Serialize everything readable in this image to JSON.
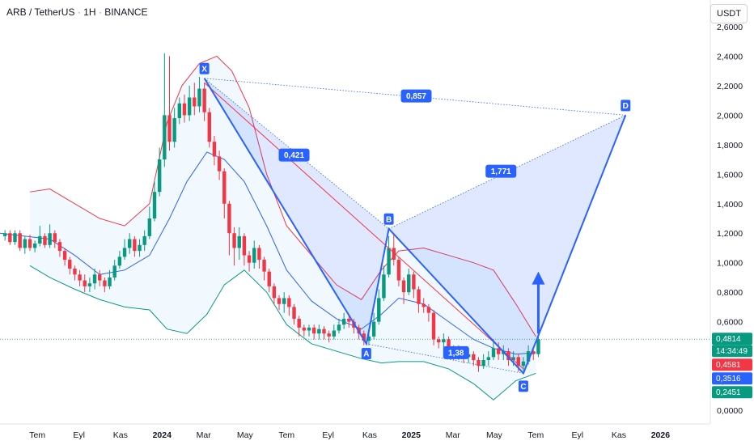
{
  "header": {
    "symbol": "ARB / TetherUS",
    "interval": "1H",
    "exchange": "BINANCE",
    "currency": "USDT"
  },
  "chart_data": {
    "type": "candlestick",
    "y_axis": {
      "range": [
        -0.1,
        2.65
      ],
      "ticks": [
        0.0,
        0.2,
        0.4,
        0.6,
        0.8,
        1.0,
        1.2,
        1.4,
        1.6,
        1.8,
        2.0,
        2.2,
        2.4,
        2.6
      ],
      "tick_labels": [
        "0,0000",
        "0,2000",
        "0,4000",
        "0,6000",
        "0,8000",
        "1,0000",
        "1,2000",
        "1,4000",
        "1,6000",
        "1,8000",
        "2,0000",
        "2,2000",
        "2,4000",
        "2,6000"
      ]
    },
    "x_axis": {
      "range": [
        2023.35,
        2026.2
      ],
      "ticks": [
        2023.5,
        2023.667,
        2023.833,
        2024.0,
        2024.167,
        2024.333,
        2024.5,
        2024.667,
        2024.833,
        2025.0,
        2025.167,
        2025.333,
        2025.5,
        2025.667,
        2025.833,
        2026.0
      ],
      "tick_labels": [
        "Tem",
        "Eyl",
        "Kas",
        "2024",
        "Mar",
        "May",
        "Tem",
        "Eyl",
        "Kas",
        "2025",
        "Mar",
        "May",
        "Tem",
        "Eyl",
        "Kas",
        "2026"
      ]
    },
    "candles": [
      [
        2023.37,
        1.18,
        1.2,
        1.22,
        1.15
      ],
      [
        2023.39,
        1.2,
        1.14,
        1.22,
        1.12
      ],
      [
        2023.41,
        1.14,
        1.2,
        1.22,
        1.12
      ],
      [
        2023.43,
        1.2,
        1.1,
        1.22,
        1.08
      ],
      [
        2023.45,
        1.1,
        1.16,
        1.18,
        1.06
      ],
      [
        2023.47,
        1.16,
        1.1,
        1.19,
        1.08
      ],
      [
        2023.49,
        1.1,
        1.13,
        1.15,
        1.07
      ],
      [
        2023.51,
        1.13,
        1.18,
        1.25,
        1.11
      ],
      [
        2023.53,
        1.18,
        1.12,
        1.2,
        1.1
      ],
      [
        2023.55,
        1.12,
        1.2,
        1.26,
        1.1
      ],
      [
        2023.57,
        1.2,
        1.14,
        1.22,
        1.1
      ],
      [
        2023.59,
        1.14,
        1.08,
        1.16,
        1.04
      ],
      [
        2023.61,
        1.08,
        1.02,
        1.1,
        0.98
      ],
      [
        2023.63,
        1.02,
        0.96,
        1.04,
        0.92
      ],
      [
        2023.65,
        0.96,
        0.92,
        0.98,
        0.88
      ],
      [
        2023.67,
        0.92,
        0.88,
        0.95,
        0.84
      ],
      [
        2023.69,
        0.88,
        0.84,
        0.92,
        0.8
      ],
      [
        2023.71,
        0.84,
        0.86,
        0.9,
        0.8
      ],
      [
        2023.73,
        0.86,
        0.92,
        0.96,
        0.82
      ],
      [
        2023.75,
        0.92,
        0.88,
        0.95,
        0.84
      ],
      [
        2023.77,
        0.88,
        0.84,
        0.9,
        0.8
      ],
      [
        2023.79,
        0.84,
        0.9,
        0.95,
        0.82
      ],
      [
        2023.81,
        0.9,
        0.98,
        1.02,
        0.88
      ],
      [
        2023.83,
        0.98,
        1.04,
        1.08,
        0.96
      ],
      [
        2023.85,
        1.04,
        1.1,
        1.16,
        1.02
      ],
      [
        2023.87,
        1.1,
        1.16,
        1.2,
        1.06
      ],
      [
        2023.89,
        1.16,
        1.08,
        1.18,
        1.04
      ],
      [
        2023.91,
        1.08,
        1.12,
        1.16,
        1.04
      ],
      [
        2023.93,
        1.12,
        1.18,
        1.22,
        1.08
      ],
      [
        2023.95,
        1.18,
        1.3,
        1.38,
        1.16
      ],
      [
        2023.97,
        1.3,
        1.48,
        1.55,
        1.28
      ],
      [
        2023.99,
        1.48,
        1.7,
        1.78,
        1.45
      ],
      [
        2024.01,
        1.7,
        2.0,
        2.42,
        1.65
      ],
      [
        2024.03,
        2.0,
        1.82,
        2.4,
        1.76
      ],
      [
        2024.05,
        1.82,
        1.98,
        2.05,
        1.78
      ],
      [
        2024.07,
        1.98,
        2.08,
        2.12,
        1.94
      ],
      [
        2024.09,
        2.08,
        2.0,
        2.14,
        1.95
      ],
      [
        2024.11,
        2.0,
        2.12,
        2.2,
        1.96
      ],
      [
        2024.13,
        2.12,
        2.06,
        2.22,
        2.0
      ],
      [
        2024.15,
        2.06,
        2.18,
        2.26,
        2.02
      ],
      [
        2024.17,
        2.18,
        2.02,
        2.22,
        1.96
      ],
      [
        2024.19,
        2.02,
        1.82,
        2.05,
        1.78
      ],
      [
        2024.21,
        1.82,
        1.72,
        1.86,
        1.66
      ],
      [
        2024.23,
        1.72,
        1.62,
        1.76,
        1.56
      ],
      [
        2024.25,
        1.62,
        1.4,
        1.64,
        1.3
      ],
      [
        2024.27,
        1.4,
        1.2,
        1.42,
        1.05
      ],
      [
        2024.29,
        1.2,
        1.1,
        1.24,
        0.98
      ],
      [
        2024.31,
        1.1,
        1.18,
        1.24,
        1.02
      ],
      [
        2024.33,
        1.18,
        1.05,
        1.2,
        0.98
      ],
      [
        2024.35,
        1.05,
        1.0,
        1.08,
        0.94
      ],
      [
        2024.37,
        1.0,
        1.1,
        1.15,
        0.96
      ],
      [
        2024.39,
        1.1,
        1.02,
        1.12,
        0.96
      ],
      [
        2024.41,
        1.02,
        0.94,
        1.04,
        0.88
      ],
      [
        2024.43,
        0.94,
        0.84,
        0.96,
        0.8
      ],
      [
        2024.45,
        0.84,
        0.76,
        0.86,
        0.72
      ],
      [
        2024.47,
        0.76,
        0.72,
        0.78,
        0.68
      ],
      [
        2024.49,
        0.72,
        0.76,
        0.8,
        0.66
      ],
      [
        2024.51,
        0.76,
        0.7,
        0.78,
        0.64
      ],
      [
        2024.53,
        0.7,
        0.62,
        0.72,
        0.58
      ],
      [
        2024.55,
        0.62,
        0.56,
        0.64,
        0.5
      ],
      [
        2024.57,
        0.56,
        0.54,
        0.58,
        0.5
      ],
      [
        2024.59,
        0.54,
        0.56,
        0.58,
        0.5
      ],
      [
        2024.61,
        0.56,
        0.52,
        0.58,
        0.48
      ],
      [
        2024.63,
        0.52,
        0.55,
        0.58,
        0.48
      ],
      [
        2024.65,
        0.55,
        0.52,
        0.57,
        0.48
      ],
      [
        2024.67,
        0.52,
        0.5,
        0.54,
        0.46
      ],
      [
        2024.69,
        0.5,
        0.54,
        0.58,
        0.48
      ],
      [
        2024.71,
        0.54,
        0.58,
        0.62,
        0.52
      ],
      [
        2024.73,
        0.58,
        0.62,
        0.66,
        0.55
      ],
      [
        2024.75,
        0.62,
        0.6,
        0.64,
        0.56
      ],
      [
        2024.77,
        0.6,
        0.56,
        0.62,
        0.52
      ],
      [
        2024.79,
        0.56,
        0.52,
        0.58,
        0.48
      ],
      [
        2024.81,
        0.52,
        0.47,
        0.54,
        0.44
      ],
      [
        2024.83,
        0.47,
        0.5,
        0.55,
        0.44
      ],
      [
        2024.85,
        0.5,
        0.6,
        0.66,
        0.48
      ],
      [
        2024.87,
        0.6,
        0.76,
        0.82,
        0.58
      ],
      [
        2024.89,
        0.76,
        0.92,
        0.98,
        0.74
      ],
      [
        2024.91,
        0.92,
        1.1,
        1.18,
        0.9
      ],
      [
        2024.93,
        1.1,
        1.02,
        1.2,
        0.98
      ],
      [
        2024.95,
        1.02,
        0.88,
        1.04,
        0.84
      ],
      [
        2024.97,
        0.88,
        0.8,
        0.9,
        0.72
      ],
      [
        2024.99,
        0.8,
        0.92,
        0.96,
        0.78
      ],
      [
        2025.01,
        0.92,
        0.82,
        0.94,
        0.76
      ],
      [
        2025.03,
        0.82,
        0.72,
        0.84,
        0.66
      ],
      [
        2025.05,
        0.72,
        0.7,
        0.76,
        0.66
      ],
      [
        2025.07,
        0.7,
        0.66,
        0.72,
        0.6
      ],
      [
        2025.09,
        0.66,
        0.48,
        0.68,
        0.44
      ],
      [
        2025.11,
        0.48,
        0.46,
        0.5,
        0.42
      ],
      [
        2025.13,
        0.46,
        0.48,
        0.52,
        0.42
      ],
      [
        2025.15,
        0.48,
        0.42,
        0.5,
        0.38
      ],
      [
        2025.17,
        0.42,
        0.38,
        0.44,
        0.34
      ],
      [
        2025.19,
        0.38,
        0.4,
        0.44,
        0.34
      ],
      [
        2025.21,
        0.4,
        0.36,
        0.42,
        0.32
      ],
      [
        2025.23,
        0.36,
        0.38,
        0.42,
        0.32
      ],
      [
        2025.25,
        0.38,
        0.34,
        0.4,
        0.3
      ],
      [
        2025.27,
        0.34,
        0.3,
        0.36,
        0.26
      ],
      [
        2025.29,
        0.3,
        0.34,
        0.38,
        0.28
      ],
      [
        2025.31,
        0.34,
        0.36,
        0.4,
        0.3
      ],
      [
        2025.33,
        0.36,
        0.42,
        0.48,
        0.34
      ],
      [
        2025.35,
        0.42,
        0.38,
        0.46,
        0.34
      ],
      [
        2025.37,
        0.38,
        0.4,
        0.44,
        0.34
      ],
      [
        2025.39,
        0.4,
        0.34,
        0.42,
        0.3
      ],
      [
        2025.41,
        0.34,
        0.36,
        0.4,
        0.3
      ],
      [
        2025.43,
        0.36,
        0.3,
        0.38,
        0.26
      ],
      [
        2025.45,
        0.3,
        0.33,
        0.36,
        0.27
      ],
      [
        2025.47,
        0.33,
        0.4,
        0.44,
        0.31
      ],
      [
        2025.49,
        0.4,
        0.38,
        0.42,
        0.34
      ],
      [
        2025.51,
        0.38,
        0.48,
        0.52,
        0.36
      ]
    ],
    "bollinger": {
      "upper": [
        [
          2023.47,
          1.48
        ],
        [
          2023.55,
          1.5
        ],
        [
          2023.65,
          1.4
        ],
        [
          2023.75,
          1.3
        ],
        [
          2023.85,
          1.25
        ],
        [
          2023.95,
          1.4
        ],
        [
          2024.02,
          1.95
        ],
        [
          2024.08,
          2.2
        ],
        [
          2024.15,
          2.35
        ],
        [
          2024.22,
          2.4
        ],
        [
          2024.28,
          2.3
        ],
        [
          2024.35,
          2.05
        ],
        [
          2024.42,
          1.6
        ],
        [
          2024.5,
          1.25
        ],
        [
          2024.6,
          1.05
        ],
        [
          2024.7,
          0.85
        ],
        [
          2024.8,
          0.75
        ],
        [
          2024.88,
          0.95
        ],
        [
          2024.95,
          1.08
        ],
        [
          2025.05,
          1.1
        ],
        [
          2025.15,
          1.05
        ],
        [
          2025.25,
          1.0
        ],
        [
          2025.33,
          0.95
        ],
        [
          2025.42,
          0.72
        ],
        [
          2025.5,
          0.5
        ]
      ],
      "middle": [
        [
          2023.35,
          1.2
        ],
        [
          2023.45,
          1.18
        ],
        [
          2023.55,
          1.16
        ],
        [
          2023.65,
          1.05
        ],
        [
          2023.75,
          0.92
        ],
        [
          2023.85,
          0.95
        ],
        [
          2023.95,
          1.05
        ],
        [
          2024.03,
          1.3
        ],
        [
          2024.1,
          1.55
        ],
        [
          2024.18,
          1.75
        ],
        [
          2024.25,
          1.7
        ],
        [
          2024.33,
          1.55
        ],
        [
          2024.42,
          1.25
        ],
        [
          2024.5,
          0.95
        ],
        [
          2024.6,
          0.74
        ],
        [
          2024.7,
          0.62
        ],
        [
          2024.8,
          0.55
        ],
        [
          2024.88,
          0.65
        ],
        [
          2024.95,
          0.76
        ],
        [
          2025.05,
          0.72
        ],
        [
          2025.15,
          0.6
        ],
        [
          2025.25,
          0.48
        ],
        [
          2025.33,
          0.42
        ],
        [
          2025.42,
          0.38
        ],
        [
          2025.5,
          0.39
        ]
      ],
      "lower": [
        [
          2023.47,
          0.98
        ],
        [
          2023.55,
          0.9
        ],
        [
          2023.65,
          0.82
        ],
        [
          2023.75,
          0.75
        ],
        [
          2023.85,
          0.7
        ],
        [
          2023.95,
          0.68
        ],
        [
          2024.02,
          0.55
        ],
        [
          2024.1,
          0.52
        ],
        [
          2024.18,
          0.65
        ],
        [
          2024.25,
          0.85
        ],
        [
          2024.33,
          0.95
        ],
        [
          2024.42,
          0.8
        ],
        [
          2024.5,
          0.58
        ],
        [
          2024.6,
          0.45
        ],
        [
          2024.7,
          0.4
        ],
        [
          2024.8,
          0.35
        ],
        [
          2024.88,
          0.32
        ],
        [
          2024.95,
          0.33
        ],
        [
          2025.05,
          0.33
        ],
        [
          2025.15,
          0.28
        ],
        [
          2025.25,
          0.18
        ],
        [
          2025.33,
          0.07
        ],
        [
          2025.42,
          0.2
        ],
        [
          2025.5,
          0.25
        ]
      ]
    },
    "harmonic_pattern": {
      "points": {
        "X": [
          2024.17,
          2.25
        ],
        "A": [
          2024.82,
          0.45
        ],
        "B": [
          2024.91,
          1.23
        ],
        "C": [
          2025.45,
          0.25
        ],
        "D": [
          2025.86,
          2.0
        ]
      },
      "ratios": [
        {
          "label": "0,421",
          "pos": [
            2024.53,
            1.73
          ]
        },
        {
          "label": "0,857",
          "pos": [
            2025.02,
            2.13
          ]
        },
        {
          "label": "1,771",
          "pos": [
            2025.36,
            1.62
          ]
        },
        {
          "label": "1,38",
          "pos": [
            2025.18,
            0.39
          ]
        }
      ]
    },
    "trendline": [
      [
        2024.17,
        2.22
      ],
      [
        2025.45,
        0.28
      ]
    ],
    "arrow": {
      "from": [
        2025.51,
        0.52
      ],
      "to": [
        2025.51,
        0.94
      ]
    },
    "current_price_line": 0.4814,
    "price_labels": [
      {
        "text": "0,4814",
        "value": 0.4814,
        "color": "#089981"
      },
      {
        "text": "14:34:49",
        "value": 0.4814,
        "color": "#089981"
      },
      {
        "text": "0,4581",
        "value": 0.4581,
        "color": "#f23645"
      },
      {
        "text": "0,3516",
        "value": 0.3516,
        "color": "#2962ff"
      },
      {
        "text": "0,2451",
        "value": 0.2451,
        "color": "#089981"
      }
    ],
    "colors": {
      "up": "#089981",
      "down": "#f23645",
      "upper_band": "#f23645",
      "middle_band": "#2962ff",
      "lower_band": "#089981",
      "pattern": "#2962ff"
    }
  }
}
